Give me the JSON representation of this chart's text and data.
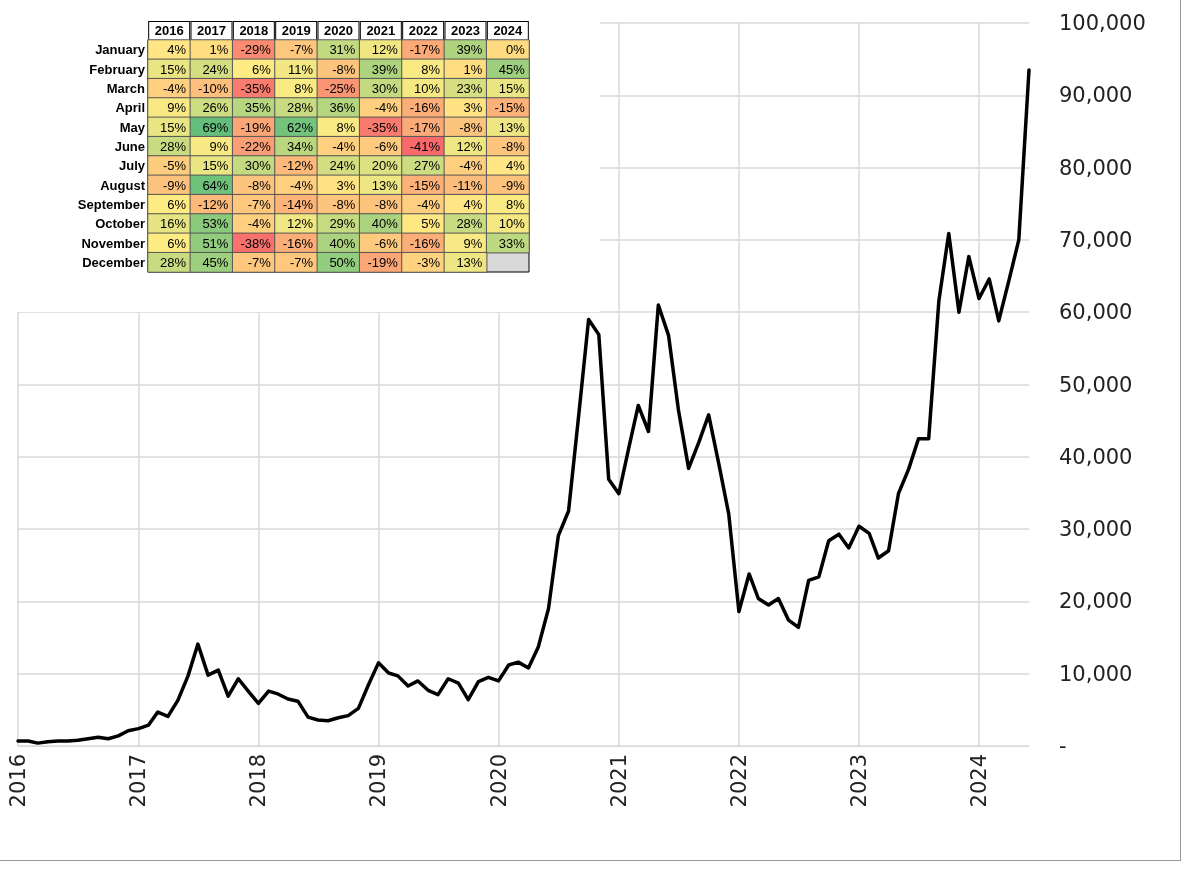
{
  "chart_data": [
    {
      "type": "heatmap",
      "categories": [
        "2016",
        "2017",
        "2018",
        "2019",
        "2020",
        "2021",
        "2022",
        "2023",
        "2024"
      ],
      "y_categories": [
        "January",
        "February",
        "March",
        "April",
        "May",
        "June",
        "July",
        "August",
        "September",
        "October",
        "November",
        "December"
      ],
      "cells": [
        [
          4,
          1,
          -29,
          -7,
          31,
          12,
          -17,
          39,
          0
        ],
        [
          15,
          24,
          6,
          11,
          -8,
          39,
          8,
          1,
          45
        ],
        [
          -4,
          -10,
          -35,
          8,
          -25,
          30,
          10,
          23,
          15
        ],
        [
          9,
          26,
          35,
          28,
          36,
          -4,
          -16,
          3,
          -15
        ],
        [
          15,
          69,
          -19,
          62,
          8,
          -35,
          -17,
          -8,
          13
        ],
        [
          28,
          9,
          -22,
          34,
          -4,
          -6,
          -41,
          12,
          -8
        ],
        [
          -5,
          15,
          30,
          -12,
          24,
          20,
          27,
          -4,
          4
        ],
        [
          -9,
          64,
          -8,
          -4,
          3,
          13,
          -15,
          -11,
          -9
        ],
        [
          6,
          -12,
          -7,
          -14,
          -8,
          -8,
          -4,
          4,
          8
        ],
        [
          16,
          53,
          -4,
          12,
          29,
          40,
          5,
          28,
          10
        ],
        [
          6,
          51,
          -38,
          -16,
          40,
          -6,
          -16,
          9,
          33
        ],
        [
          28,
          45,
          -7,
          -7,
          50,
          -19,
          -3,
          13,
          null
        ]
      ],
      "cell_labels": [
        [
          "4%",
          "1%",
          "-29%",
          "-7%",
          "31%",
          "12%",
          "-17%",
          "39%",
          "0%"
        ],
        [
          "15%",
          "24%",
          "6%",
          "11%",
          "-8%",
          "39%",
          "8%",
          "1%",
          "45%"
        ],
        [
          "-4%",
          "-10%",
          "-35%",
          "8%",
          "-25%",
          "30%",
          "10%",
          "23%",
          "15%"
        ],
        [
          "9%",
          "26%",
          "35%",
          "28%",
          "36%",
          "-4%",
          "-16%",
          "3%",
          "-15%"
        ],
        [
          "15%",
          "69%",
          "-19%",
          "62%",
          "8%",
          "-35%",
          "-17%",
          "-8%",
          "13%"
        ],
        [
          "28%",
          "9%",
          "-22%",
          "34%",
          "-4%",
          "-6%",
          "-41%",
          "12%",
          "-8%"
        ],
        [
          "-5%",
          "15%",
          "30%",
          "-12%",
          "24%",
          "20%",
          "27%",
          "-4%",
          "4%"
        ],
        [
          "-9%",
          "64%",
          "-8%",
          "-4%",
          "3%",
          "13%",
          "-15%",
          "-11%",
          "-9%"
        ],
        [
          "6%",
          "-12%",
          "-7%",
          "-14%",
          "-8%",
          "-8%",
          "-4%",
          "4%",
          "8%"
        ],
        [
          "16%",
          "53%",
          "-4%",
          "12%",
          "29%",
          "40%",
          "5%",
          "28%",
          "10%"
        ],
        [
          "6%",
          "51%",
          "-38%",
          "-16%",
          "40%",
          "-6%",
          "-16%",
          "9%",
          "33%"
        ],
        [
          "28%",
          "45%",
          "-7%",
          "-7%",
          "50%",
          "-19%",
          "-3%",
          "13%",
          null
        ]
      ]
    },
    {
      "type": "line",
      "x": [
        "2016-01",
        "2016-02",
        "2016-03",
        "2016-04",
        "2016-05",
        "2016-06",
        "2016-07",
        "2016-08",
        "2016-09",
        "2016-10",
        "2016-11",
        "2016-12",
        "2017-01",
        "2017-02",
        "2017-03",
        "2017-04",
        "2017-05",
        "2017-06",
        "2017-07",
        "2017-08",
        "2017-09",
        "2017-10",
        "2017-11",
        "2017-12",
        "2018-01",
        "2018-02",
        "2018-03",
        "2018-04",
        "2018-05",
        "2018-06",
        "2018-07",
        "2018-08",
        "2018-09",
        "2018-10",
        "2018-11",
        "2018-12",
        "2019-01",
        "2019-02",
        "2019-03",
        "2019-04",
        "2019-05",
        "2019-06",
        "2019-07",
        "2019-08",
        "2019-09",
        "2019-10",
        "2019-11",
        "2019-12",
        "2020-01",
        "2020-02",
        "2020-03",
        "2020-04",
        "2020-05",
        "2020-06",
        "2020-07",
        "2020-08",
        "2020-09",
        "2020-10",
        "2020-11",
        "2020-12",
        "2021-01",
        "2021-02",
        "2021-03",
        "2021-04",
        "2021-05",
        "2021-06",
        "2021-07",
        "2021-08",
        "2021-09",
        "2021-10",
        "2021-11",
        "2021-12",
        "2022-01",
        "2022-02",
        "2022-03",
        "2022-04",
        "2022-05",
        "2022-06",
        "2022-07",
        "2022-08",
        "2022-09",
        "2022-10",
        "2022-11",
        "2022-12",
        "2023-01",
        "2023-02",
        "2023-03",
        "2023-04",
        "2023-05",
        "2023-06",
        "2023-07",
        "2023-08",
        "2023-09",
        "2023-10",
        "2023-11",
        "2023-12",
        "2024-01",
        "2024-02",
        "2024-03",
        "2024-04",
        "2024-05",
        "2024-06"
      ],
      "series": [
        {
          "color": "#000000",
          "values": [
            700,
            700,
            400,
            600,
            700,
            700,
            800,
            1000,
            1200,
            1000,
            1400,
            2100,
            2400,
            2900,
            4700,
            4100,
            6300,
            9700,
            14100,
            9800,
            10500,
            6900,
            9300,
            7600,
            5900,
            7600,
            7200,
            6500,
            6200,
            4000,
            3600,
            3500,
            3900,
            4200,
            5200,
            8400,
            11500,
            10100,
            9700,
            8300,
            9000,
            7700,
            7100,
            9300,
            8700,
            6400,
            8900,
            9500,
            9000,
            11200,
            11600,
            10800,
            13700,
            19000,
            29100,
            32500,
            45800,
            59000,
            56900,
            36900,
            34900,
            41400,
            47100,
            43500,
            61000,
            56800,
            46500,
            38400,
            42000,
            45800,
            39000,
            32100,
            18600,
            23800,
            20400,
            19500,
            20400,
            17400,
            16400,
            22900,
            23400,
            28400,
            29300,
            27400,
            30400,
            29400,
            26000,
            27000,
            34900,
            38300,
            42500,
            42500,
            61600,
            70900,
            60000,
            67700,
            61900,
            64600,
            58800,
            64400,
            70000,
            93500
          ]
        }
      ],
      "xlim": [
        "2016-01",
        "2024-06"
      ],
      "xticks": [
        {
          "value": "2016-01",
          "label": "2016"
        },
        {
          "value": "2017-01",
          "label": "2017"
        },
        {
          "value": "2018-01",
          "label": "2018"
        },
        {
          "value": "2019-01",
          "label": "2019"
        },
        {
          "value": "2020-01",
          "label": "2020"
        },
        {
          "value": "2021-01",
          "label": "2021"
        },
        {
          "value": "2022-01",
          "label": "2022"
        },
        {
          "value": "2023-01",
          "label": "2023"
        },
        {
          "value": "2024-01",
          "label": "2024"
        }
      ],
      "ylim": [
        0,
        100000
      ],
      "yticks": [
        {
          "value": 0,
          "label": "-"
        },
        {
          "value": 10000,
          "label": "10,000"
        },
        {
          "value": 20000,
          "label": "20,000"
        },
        {
          "value": 30000,
          "label": "30,000"
        },
        {
          "value": 40000,
          "label": "40,000"
        },
        {
          "value": 50000,
          "label": "50,000"
        },
        {
          "value": 60000,
          "label": "60,000"
        },
        {
          "value": 70000,
          "label": "70,000"
        },
        {
          "value": 80000,
          "label": "80,000"
        },
        {
          "value": 90000,
          "label": "90,000"
        },
        {
          "value": 100000,
          "label": "100,000"
        }
      ],
      "grid": true,
      "marker": "none",
      "line_style": "solid"
    }
  ]
}
